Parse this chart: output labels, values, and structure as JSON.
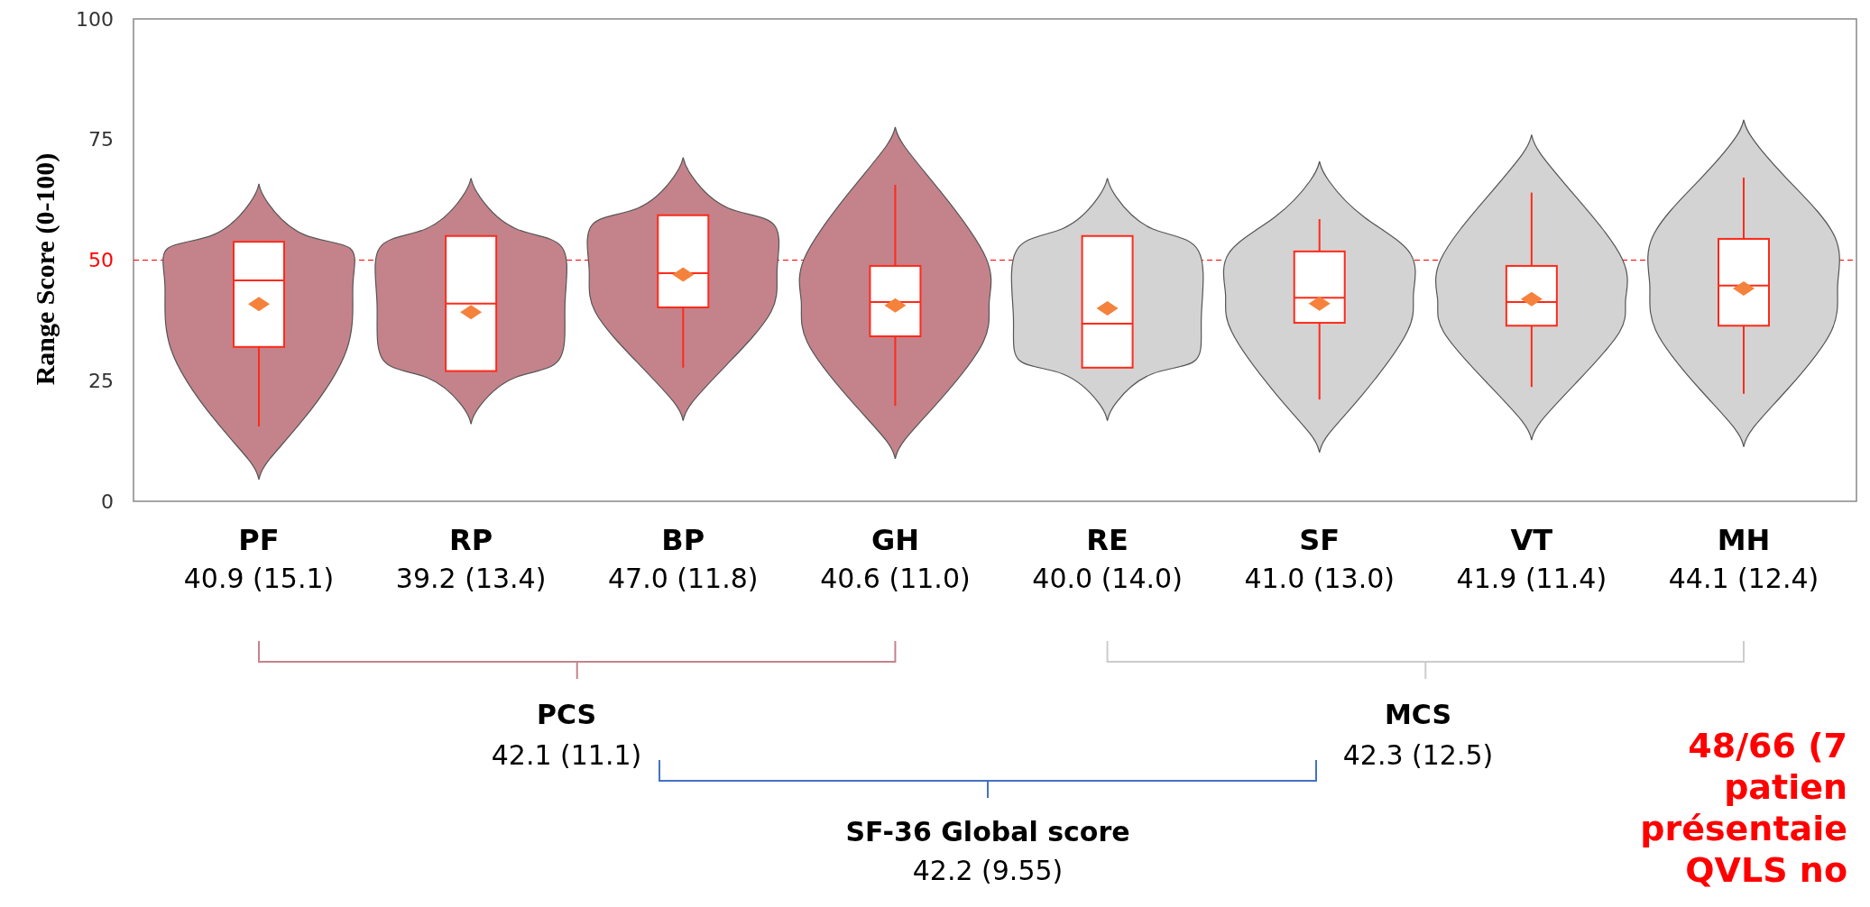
{
  "chart_data": {
    "type": "box",
    "ylabel": "Range Score (0-100)",
    "categories": [
      "PF",
      "RP",
      "BP",
      "GH",
      "RE",
      "SF",
      "VT",
      "MH"
    ],
    "boxes": [
      {
        "low": 15.5,
        "q1": 32,
        "median": 45.8,
        "q3": 53.8,
        "high": 53.8,
        "mean": 40.9
      },
      {
        "low": 27,
        "q1": 27,
        "median": 41,
        "q3": 55,
        "high": 55,
        "mean": 39.2
      },
      {
        "low": 27.7,
        "q1": 40.2,
        "median": 47.3,
        "q3": 59.3,
        "high": 59.3,
        "mean": 47.0
      },
      {
        "low": 19.8,
        "q1": 34.2,
        "median": 41.3,
        "q3": 48.8,
        "high": 65.6,
        "mean": 40.6
      },
      {
        "low": 27.7,
        "q1": 27.7,
        "median": 36.8,
        "q3": 55,
        "high": 55,
        "mean": 40.0
      },
      {
        "low": 21.1,
        "q1": 37,
        "median": 42.2,
        "q3": 51.8,
        "high": 58.5,
        "mean": 41.0
      },
      {
        "low": 23.7,
        "q1": 36.4,
        "median": 41.3,
        "q3": 48.8,
        "high": 64,
        "mean": 41.9
      },
      {
        "low": 22.3,
        "q1": 36.4,
        "median": 44.7,
        "q3": 54.4,
        "high": 67.1,
        "mean": 44.1
      }
    ],
    "ylim": [
      0,
      100
    ],
    "yticks": [
      0,
      25,
      50,
      75,
      100
    ],
    "ref_lines": [
      {
        "axis": "y",
        "value": 50,
        "color": "#ff0000",
        "line_style": "dashed"
      }
    ],
    "annotations": [
      "40.9 (15.1)",
      "39.2 (13.4)",
      "47.0 (11.8)",
      "40.6 (11.0)",
      "40.0 (14.0)",
      "41.0 (13.0)",
      "41.9 (11.4)",
      "44.1 (12.4)",
      "PCS",
      "42.1 (11.1)",
      "MCS",
      "42.3 (12.5)",
      "SF-36 Global score",
      "42.2 (9.55)",
      "48/66 (7",
      "patien",
      "présentaie",
      "QVLS no"
    ]
  }
}
